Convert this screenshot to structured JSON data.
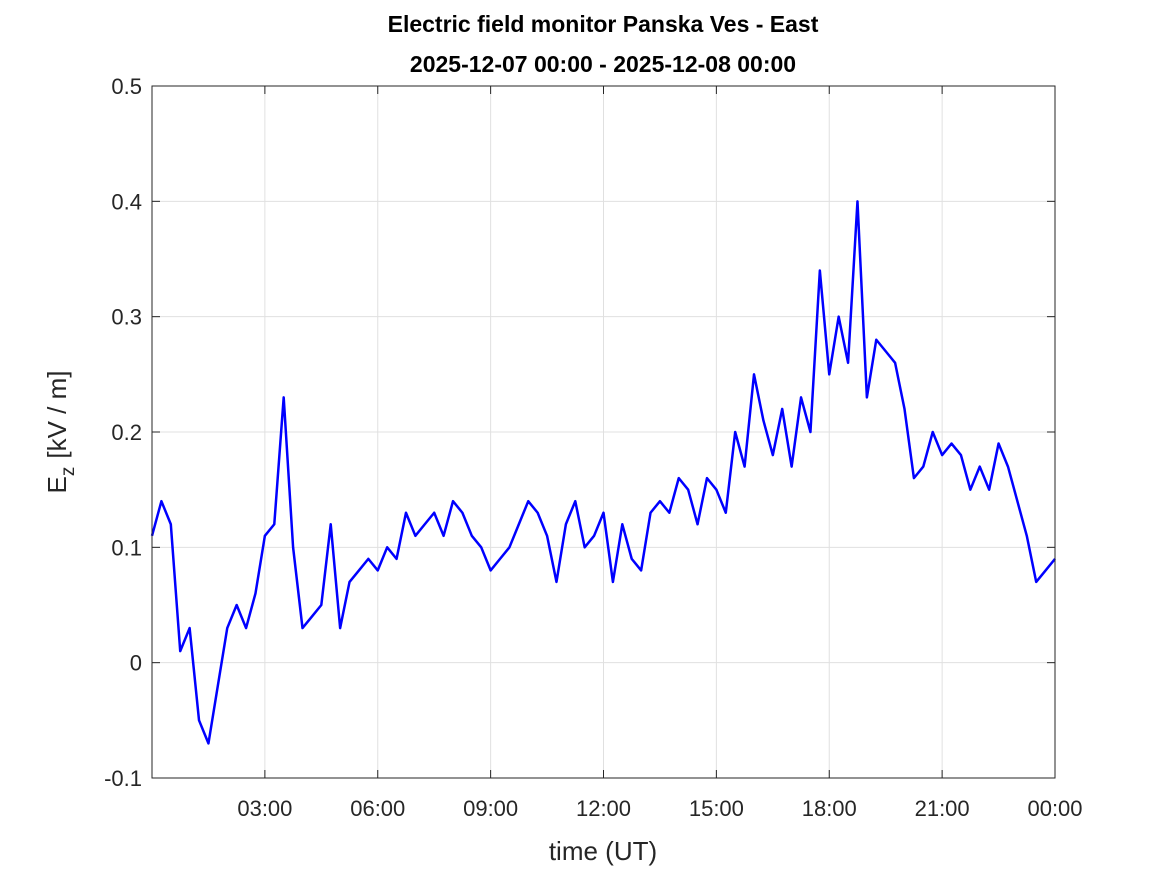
{
  "chart_data": {
    "type": "line",
    "title": "Electric field monitor Panska Ves - East",
    "subtitle": "2025-12-07 00:00 - 2025-12-08 00:00",
    "xlabel": "time (UT)",
    "ylabel": {
      "symbol": "E",
      "subscript": "z",
      "unit": "[kV / m]"
    },
    "x": [
      0,
      0.25,
      0.5,
      0.75,
      1,
      1.25,
      1.5,
      1.75,
      2,
      2.25,
      2.5,
      2.75,
      3,
      3.25,
      3.5,
      3.75,
      4,
      4.25,
      4.5,
      4.75,
      5,
      5.25,
      5.5,
      5.75,
      6,
      6.25,
      6.5,
      6.75,
      7,
      7.25,
      7.5,
      7.75,
      8,
      8.25,
      8.5,
      8.75,
      9,
      9.25,
      9.5,
      9.75,
      10,
      10.25,
      10.5,
      10.75,
      11,
      11.25,
      11.5,
      11.75,
      12,
      12.25,
      12.5,
      12.75,
      13,
      13.25,
      13.5,
      13.75,
      14,
      14.25,
      14.5,
      14.75,
      15,
      15.25,
      15.5,
      15.75,
      16,
      16.25,
      16.5,
      16.75,
      17,
      17.25,
      17.5,
      17.75,
      18,
      18.25,
      18.5,
      18.75,
      19,
      19.25,
      19.5,
      19.75,
      20,
      20.25,
      20.5,
      20.75,
      21,
      21.25,
      21.5,
      21.75,
      22,
      22.25,
      22.5,
      22.75,
      23,
      23.25,
      23.5,
      23.75,
      24
    ],
    "series": [
      {
        "name": "Ez",
        "color": "#0000ff",
        "values": [
          0.11,
          0.14,
          0.12,
          0.01,
          0.03,
          -0.05,
          -0.07,
          -0.02,
          0.03,
          0.05,
          0.03,
          0.06,
          0.11,
          0.12,
          0.23,
          0.1,
          0.03,
          0.04,
          0.05,
          0.12,
          0.03,
          0.07,
          0.08,
          0.09,
          0.08,
          0.1,
          0.09,
          0.13,
          0.11,
          0.12,
          0.13,
          0.11,
          0.14,
          0.13,
          0.11,
          0.1,
          0.08,
          0.09,
          0.1,
          0.12,
          0.14,
          0.13,
          0.11,
          0.07,
          0.12,
          0.14,
          0.1,
          0.11,
          0.13,
          0.07,
          0.12,
          0.09,
          0.08,
          0.13,
          0.14,
          0.13,
          0.16,
          0.15,
          0.12,
          0.16,
          0.15,
          0.13,
          0.2,
          0.17,
          0.25,
          0.21,
          0.18,
          0.22,
          0.17,
          0.23,
          0.2,
          0.34,
          0.25,
          0.3,
          0.26,
          0.4,
          0.23,
          0.28,
          0.27,
          0.26,
          0.22,
          0.16,
          0.17,
          0.2,
          0.18,
          0.19,
          0.18,
          0.15,
          0.17,
          0.15,
          0.19,
          0.17,
          0.14,
          0.11,
          0.07,
          0.08,
          0.09
        ]
      }
    ],
    "xlim": [
      0,
      24
    ],
    "xticks": [
      {
        "value": 3,
        "label": "03:00"
      },
      {
        "value": 6,
        "label": "06:00"
      },
      {
        "value": 9,
        "label": "09:00"
      },
      {
        "value": 12,
        "label": "12:00"
      },
      {
        "value": 15,
        "label": "15:00"
      },
      {
        "value": 18,
        "label": "18:00"
      },
      {
        "value": 21,
        "label": "21:00"
      },
      {
        "value": 24,
        "label": "00:00"
      }
    ],
    "ylim": [
      -0.1,
      0.5
    ],
    "yticks": [
      -0.1,
      0,
      0.1,
      0.2,
      0.3,
      0.4,
      0.5
    ],
    "grid": true
  }
}
